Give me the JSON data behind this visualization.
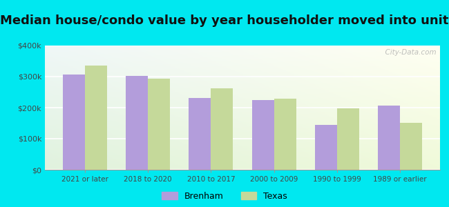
{
  "title": "Median house/condo value by year householder moved into unit",
  "categories": [
    "2021 or later",
    "2018 to 2020",
    "2010 to 2017",
    "2000 to 2009",
    "1990 to 1999",
    "1989 or earlier"
  ],
  "brenham_values": [
    307000,
    302000,
    232000,
    224000,
    145000,
    207000
  ],
  "texas_values": [
    335000,
    293000,
    263000,
    228000,
    197000,
    152000
  ],
  "brenham_color": "#b39ddb",
  "texas_color": "#c5d99a",
  "background_outer": "#00e8f0",
  "background_inner_top": "#e8f8f8",
  "background_inner_bottom": "#e8f5e0",
  "ylim": [
    0,
    400000
  ],
  "yticks": [
    0,
    100000,
    200000,
    300000,
    400000
  ],
  "ytick_labels": [
    "$0",
    "$100k",
    "$200k",
    "$300k",
    "$400k"
  ],
  "title_fontsize": 13,
  "legend_labels": [
    "Brenham",
    "Texas"
  ],
  "bar_width": 0.35,
  "watermark": "  City-Data.com"
}
